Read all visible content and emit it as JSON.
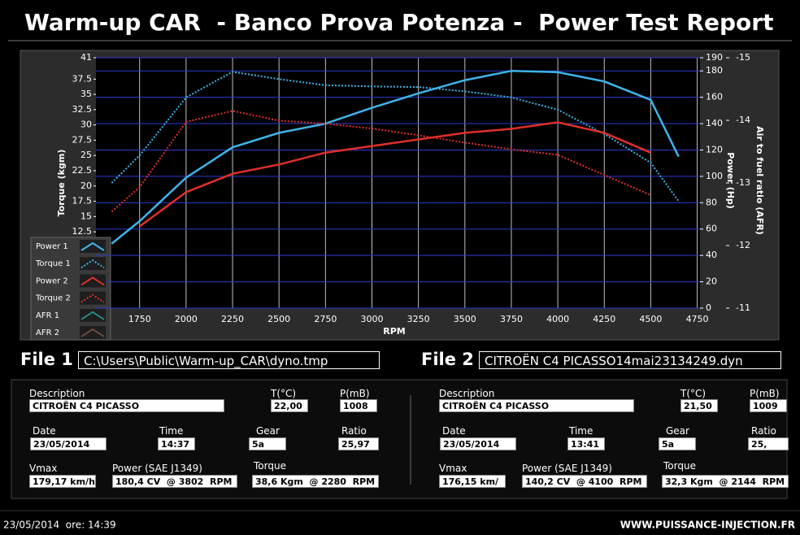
{
  "header": {
    "title": "Warm-up CAR  - Banco Prova Potenza -  Power Test Report"
  },
  "chart_data": {
    "type": "line",
    "x_label": "RPM",
    "y_label": "Torque (kgm)",
    "y2_label": "Power (Hp)",
    "y3_label": "Air to fuel ratio (AFR)",
    "x": [
      1600,
      1750,
      2000,
      2250,
      2500,
      2750,
      3000,
      3250,
      3500,
      3750,
      4000,
      4250,
      4500,
      4650
    ],
    "xlim": [
      1515,
      4765
    ],
    "xticks": [
      1750,
      2000,
      2250,
      2500,
      2750,
      3000,
      3250,
      3500,
      3750,
      4000,
      4250,
      4500,
      4750
    ],
    "ylim": [
      0,
      41
    ],
    "yticks": [
      12.5,
      15,
      17.5,
      20,
      22.5,
      25,
      27.5,
      30,
      32.5,
      35,
      37.5,
      41
    ],
    "y2lim": [
      0,
      190
    ],
    "y2ticks": [
      0,
      20,
      40,
      60,
      80,
      100,
      120,
      140,
      160,
      180,
      190
    ],
    "y3lim": [
      -11,
      -15
    ],
    "y3ticks": [
      -11,
      -12,
      -13,
      -14,
      -15
    ],
    "grid": true,
    "legend": "lower left",
    "series": [
      {
        "name": "Power 1",
        "color": "#3fb4ea",
        "axis": "y2",
        "style": "solid",
        "values": [
          49,
          66,
          99,
          122,
          133,
          140,
          152,
          163,
          173,
          180,
          179,
          172,
          158,
          115
        ]
      },
      {
        "name": "Torque 1",
        "color": "#3fb4ea",
        "axis": "y",
        "style": "dotted",
        "values": [
          20.5,
          25,
          34.5,
          38.7,
          37.5,
          36.5,
          36.3,
          36.2,
          35.5,
          34.5,
          32.5,
          28.5,
          23.8,
          17.5
        ]
      },
      {
        "name": "Power 2",
        "color": "#e0302a",
        "axis": "y2",
        "style": "solid",
        "values": [
          null,
          62,
          88,
          102,
          109,
          118,
          123,
          128,
          133,
          136,
          141,
          133,
          118,
          null
        ]
      },
      {
        "name": "Torque 2",
        "color": "#e0302a",
        "axis": "y",
        "style": "dotted",
        "values": [
          15.8,
          19.8,
          30.5,
          32.3,
          30.7,
          30.2,
          29.4,
          28.3,
          27.1,
          26,
          25.1,
          21.8,
          18.5,
          null
        ]
      },
      {
        "name": "AFR 1",
        "color": "#2a8a8a",
        "axis": "y3",
        "style": "solid",
        "values": [
          null,
          null,
          null,
          null,
          null,
          null,
          null,
          null,
          null,
          null,
          null,
          null,
          null,
          null
        ]
      },
      {
        "name": "AFR 2",
        "color": "#6a4a3a",
        "axis": "y3",
        "style": "solid",
        "values": [
          null,
          null,
          null,
          null,
          null,
          null,
          null,
          null,
          null,
          null,
          null,
          null,
          null,
          null
        ]
      }
    ]
  },
  "files": [
    {
      "label": "File 1",
      "path": "C:\\Users\\Public\\Warm-up_CAR\\dyno.tmp",
      "fields": [
        {
          "label": "Description",
          "value": "CITROËN C4 PICASSO"
        },
        {
          "label": "T(°C)",
          "value": "22,00"
        },
        {
          "label": "P(mB)",
          "value": "1008"
        },
        {
          "label": "Date",
          "value": "23/05/2014"
        },
        {
          "label": "Time",
          "value": "14:37"
        },
        {
          "label": "Gear",
          "value": "5a"
        },
        {
          "label": "Ratio",
          "value": "25,97"
        },
        {
          "label": "Vmax",
          "value": "179,17 km/h"
        },
        {
          "label": "Power (SAE J1349)",
          "value": "180,4 CV  @ 3802  RPM"
        },
        {
          "label": "Torque",
          "value": "38,6 Kgm  @ 2280  RPM"
        }
      ]
    },
    {
      "label": "File 2",
      "path": "CITROËN C4 PICASSO14mai23134249.dyn",
      "fields": [
        {
          "label": "Description",
          "value": "CITROËN C4 PICASSO"
        },
        {
          "label": "T(°C)",
          "value": "21,50"
        },
        {
          "label": "P(mB)",
          "value": "1009"
        },
        {
          "label": "Date",
          "value": "23/05/2014"
        },
        {
          "label": "Time",
          "value": "13:41"
        },
        {
          "label": "Gear",
          "value": "5a"
        },
        {
          "label": "Ratio",
          "value": "25,"
        },
        {
          "label": "Vmax",
          "value": "176,15 km/"
        },
        {
          "label": "Power (SAE J1349)",
          "value": "140,2 CV  @ 4100  RPM"
        },
        {
          "label": "Torque",
          "value": "32,3 Kgm  @ 2144  RPM"
        }
      ]
    }
  ],
  "footer": {
    "timestamp": "23/05/2014  ore: 14:39",
    "website": "WWW.PUISSANCE-INJECTION.FR"
  }
}
